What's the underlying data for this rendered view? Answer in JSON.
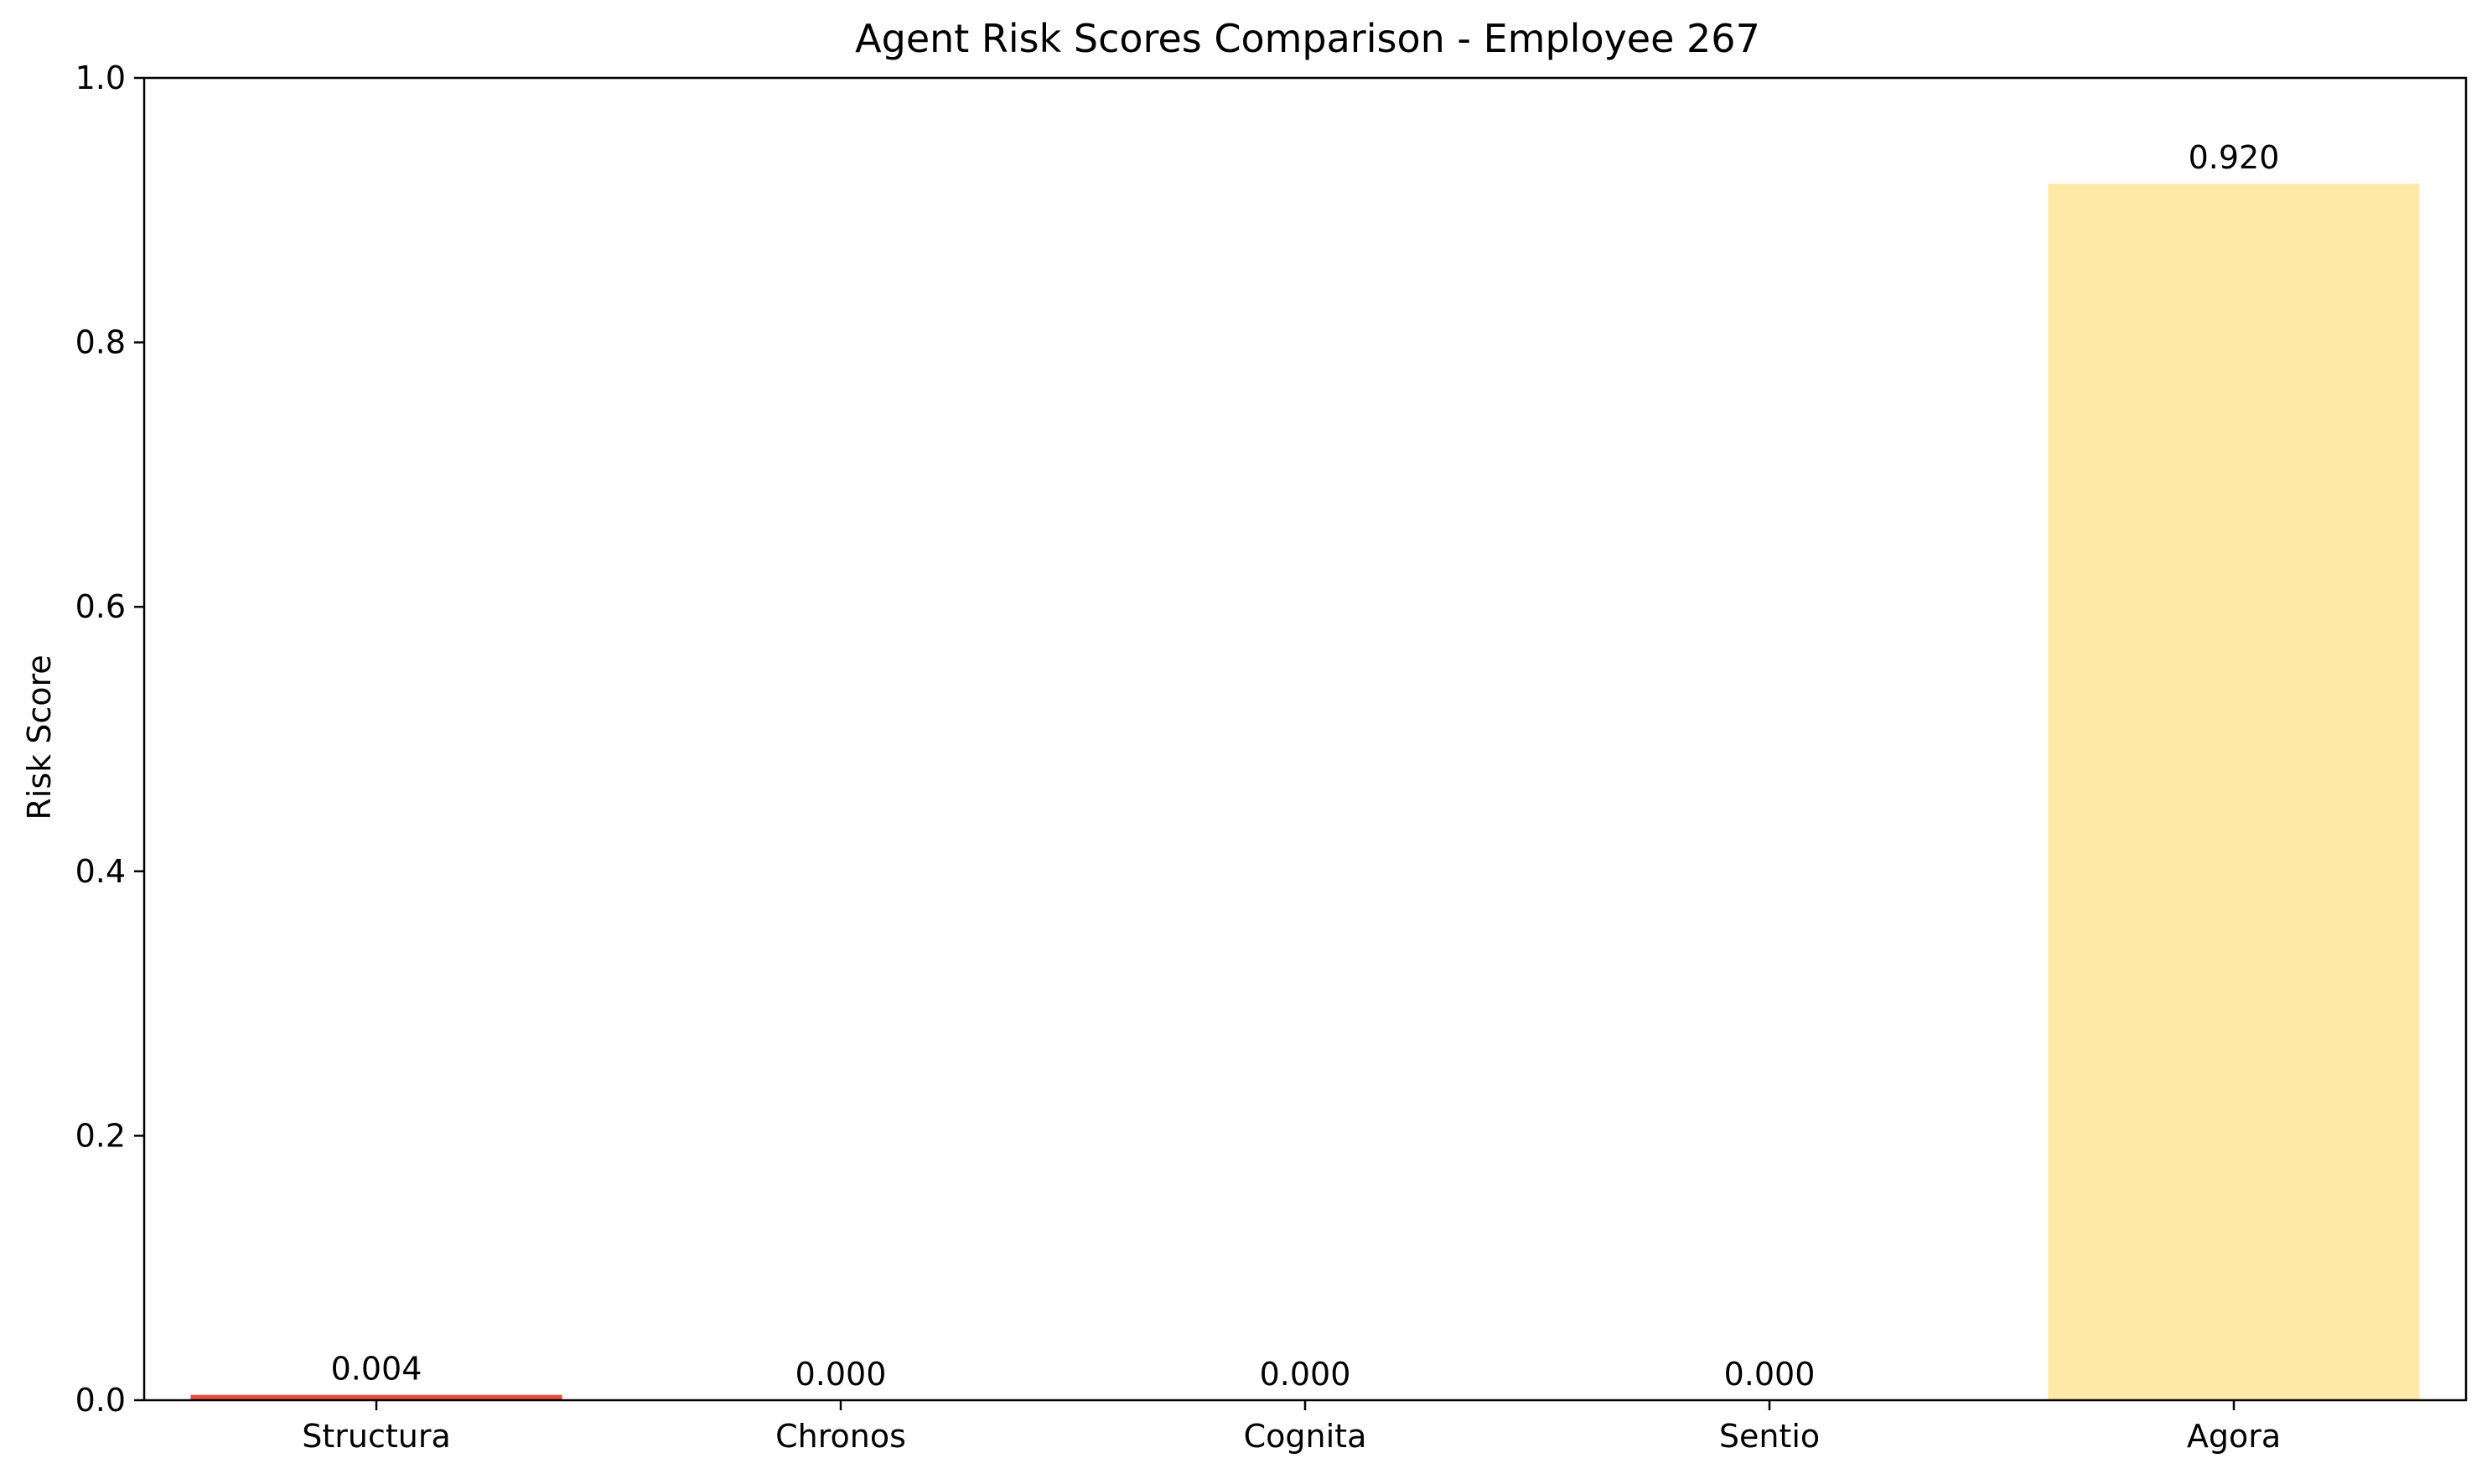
{
  "chart_data": {
    "type": "bar",
    "title": "Agent Risk Scores Comparison - Employee 267",
    "xlabel": "",
    "ylabel": "Risk Score",
    "categories": [
      "Structura",
      "Chronos",
      "Cognita",
      "Sentio",
      "Agora"
    ],
    "values": [
      0.004,
      0.0,
      0.0,
      0.0,
      0.92
    ],
    "value_labels": [
      "0.004",
      "0.000",
      "0.000",
      "0.000",
      "0.920"
    ],
    "colors": [
      "#e74c3c",
      "#3498db",
      "#2ecc71",
      "#9b59b6",
      "#ffe9a8"
    ],
    "ylim": [
      0,
      1.0
    ],
    "yticks": [
      0.0,
      0.2,
      0.4,
      0.6,
      0.8,
      1.0
    ],
    "ytick_labels": [
      "0.0",
      "0.2",
      "0.4",
      "0.6",
      "0.8",
      "1.0"
    ],
    "grid": false,
    "legend": "none"
  }
}
